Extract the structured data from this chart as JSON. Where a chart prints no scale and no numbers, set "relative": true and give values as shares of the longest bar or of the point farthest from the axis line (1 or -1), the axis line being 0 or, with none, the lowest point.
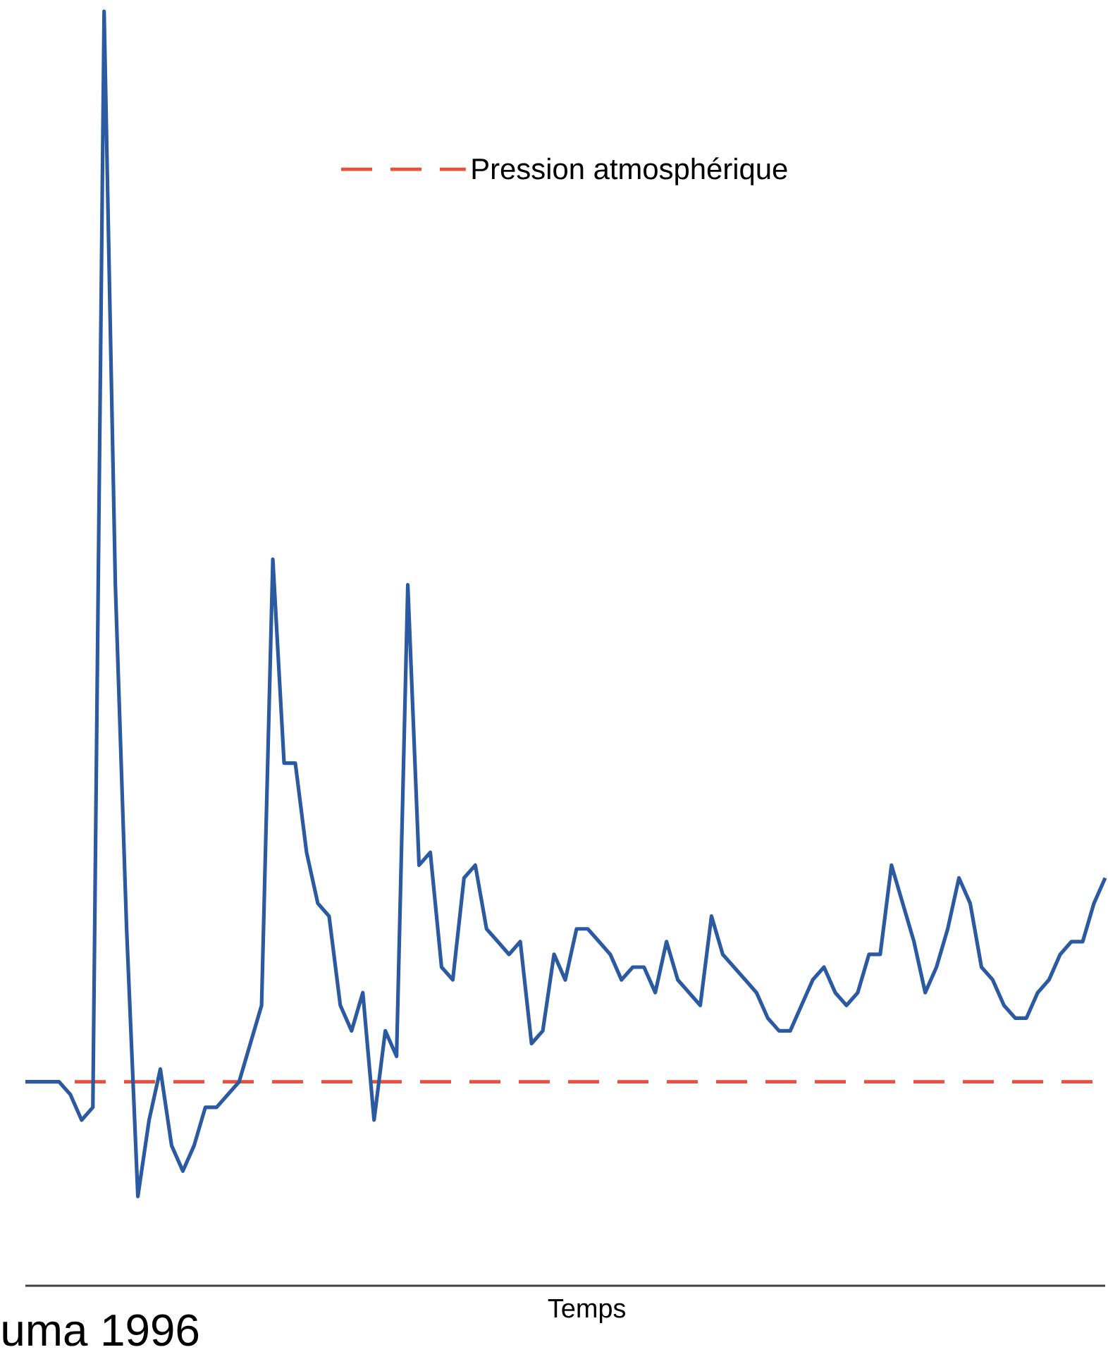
{
  "chart_data": {
    "type": "line",
    "xlabel": "Temps",
    "relative": true,
    "legend": "top",
    "annotations": [
      "uma 1996"
    ],
    "categories": [
      null,
      null,
      null,
      null,
      null,
      null,
      null,
      null,
      null,
      null,
      null,
      null,
      null,
      null,
      null,
      null,
      null,
      null,
      null,
      null,
      null,
      null,
      null,
      null,
      null,
      null,
      null,
      null,
      null,
      null,
      null,
      null,
      null,
      null,
      null,
      null,
      null,
      null,
      null,
      null,
      null,
      null,
      null,
      null,
      null,
      null,
      null,
      null,
      null,
      null,
      null,
      null,
      null,
      null,
      null,
      null,
      null,
      null,
      null,
      null,
      null,
      null,
      null,
      null,
      null,
      null,
      null,
      null,
      null,
      null,
      null,
      null,
      null,
      null,
      null,
      null,
      null,
      null,
      null,
      null,
      null,
      null,
      null,
      null,
      null,
      null,
      null,
      null,
      null,
      null,
      null,
      null,
      null,
      null,
      null,
      null,
      null
    ],
    "series": [
      {
        "color": "#2c5aa0",
        "values": [
          0.16,
          0.16,
          0.16,
          0.16,
          0.15,
          0.13,
          0.14,
          1.0,
          0.55,
          0.28,
          0.07,
          0.13,
          0.17,
          0.11,
          0.09,
          0.11,
          0.14,
          0.14,
          0.15,
          0.16,
          0.19,
          0.22,
          0.57,
          0.41,
          0.41,
          0.34,
          0.3,
          0.29,
          0.22,
          0.2,
          0.23,
          0.13,
          0.2,
          0.18,
          0.55,
          0.33,
          0.34,
          0.25,
          0.24,
          0.32,
          0.33,
          0.28,
          0.27,
          0.26,
          0.27,
          0.19,
          0.2,
          0.26,
          0.24,
          0.28,
          0.28,
          0.27,
          0.26,
          0.24,
          0.25,
          0.25,
          0.23,
          0.27,
          0.24,
          0.23,
          0.22,
          0.29,
          0.26,
          0.25,
          0.24,
          0.23,
          0.21,
          0.2,
          0.2,
          0.22,
          0.24,
          0.25,
          0.23,
          0.22,
          0.23,
          0.26,
          0.26,
          0.33,
          0.3,
          0.27,
          0.23,
          0.25,
          0.28,
          0.32,
          0.3,
          0.25,
          0.24,
          0.22,
          0.21,
          0.21,
          0.23,
          0.24,
          0.26,
          0.27,
          0.27,
          0.3,
          0.32
        ]
      }
    ],
    "ref_lines": [
      {
        "axis": "y",
        "value": 0.16,
        "label": "Pression atmosphérique",
        "color": "#e8503a",
        "line_style": "dashed"
      }
    ]
  }
}
